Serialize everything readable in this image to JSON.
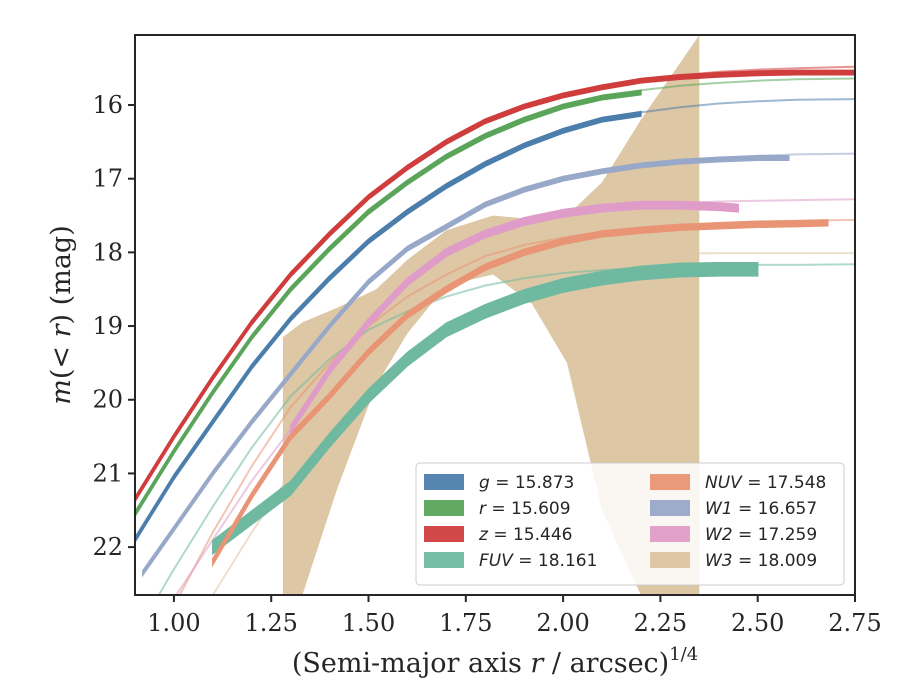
{
  "chart_data": {
    "type": "line",
    "xlabel": "(Semi-major axis r / arcsec)",
    "xlabel_parts": {
      "pre": "(Semi-major axis ",
      "var": "r",
      "post": " / arcsec)",
      "sup": "1/4"
    },
    "ylabel": "m(< r) (mag)",
    "ylabel_parts": {
      "pre": "m(",
      "mid": "< r",
      "post": ") (mag)"
    },
    "xlim": [
      0.9,
      2.75
    ],
    "ylim": [
      22.65,
      15.05
    ],
    "y_inverted": true,
    "xticks": [
      1.0,
      1.25,
      1.5,
      1.75,
      2.0,
      2.25,
      2.5,
      2.75
    ],
    "xtick_labels": [
      "1.00",
      "1.25",
      "1.50",
      "1.75",
      "2.00",
      "2.25",
      "2.50",
      "2.75"
    ],
    "yticks": [
      16,
      17,
      18,
      19,
      20,
      21,
      22
    ],
    "ytick_labels": [
      "16",
      "17",
      "18",
      "19",
      "20",
      "21",
      "22"
    ],
    "grid": false,
    "legend_position": "lower-right",
    "series": [
      {
        "name": "g",
        "label_var": "g",
        "label_value": "= 15.873",
        "color": "#4c7eac",
        "x": [
          0.9,
          1.0,
          1.1,
          1.2,
          1.3,
          1.4,
          1.5,
          1.6,
          1.7,
          1.8,
          1.9,
          2.0,
          2.1,
          2.2,
          2.3,
          2.4,
          2.5,
          2.6,
          2.75
        ],
        "y": [
          21.9,
          21.05,
          20.3,
          19.55,
          18.9,
          18.35,
          17.85,
          17.45,
          17.1,
          16.8,
          16.55,
          16.35,
          16.2,
          16.12,
          16.07,
          16.04,
          16.02,
          16.01,
          16.0
        ],
        "model_y": [
          21.9,
          21.05,
          20.3,
          19.55,
          18.9,
          18.35,
          17.85,
          17.45,
          17.1,
          16.8,
          16.55,
          16.35,
          16.2,
          16.1,
          16.03,
          15.98,
          15.95,
          15.93,
          15.92
        ],
        "x_end": 2.2,
        "band": 0.03
      },
      {
        "name": "r",
        "label_var": "r",
        "label_value": "= 15.609",
        "color": "#5aa55a",
        "x": [
          0.9,
          1.0,
          1.1,
          1.2,
          1.3,
          1.4,
          1.5,
          1.6,
          1.7,
          1.8,
          1.9,
          2.0,
          2.1,
          2.2,
          2.3,
          2.4,
          2.5,
          2.6,
          2.75
        ],
        "y": [
          21.55,
          20.7,
          19.9,
          19.15,
          18.5,
          17.95,
          17.45,
          17.05,
          16.7,
          16.42,
          16.2,
          16.02,
          15.9,
          15.83,
          15.78,
          15.75,
          15.73,
          15.72,
          15.71
        ],
        "model_y": [
          21.55,
          20.7,
          19.9,
          19.15,
          18.5,
          17.95,
          17.45,
          17.05,
          16.7,
          16.42,
          16.2,
          16.02,
          15.9,
          15.8,
          15.74,
          15.7,
          15.67,
          15.65,
          15.64
        ],
        "x_end": 2.23,
        "band": 0.03
      },
      {
        "name": "z",
        "label_var": "z",
        "label_value": "= 15.446",
        "color": "#d03d3d",
        "x": [
          0.9,
          1.0,
          1.1,
          1.2,
          1.3,
          1.4,
          1.5,
          1.6,
          1.7,
          1.8,
          1.9,
          2.0,
          2.1,
          2.2,
          2.3,
          2.4,
          2.5,
          2.6,
          2.75
        ],
        "y": [
          21.35,
          20.5,
          19.7,
          18.95,
          18.3,
          17.75,
          17.25,
          16.85,
          16.5,
          16.22,
          16.02,
          15.87,
          15.76,
          15.67,
          15.62,
          15.59,
          15.57,
          15.56,
          15.56
        ],
        "model_y": [
          21.35,
          20.5,
          19.7,
          18.95,
          18.3,
          17.75,
          17.25,
          16.85,
          16.5,
          16.22,
          16.02,
          15.87,
          15.76,
          15.66,
          15.6,
          15.55,
          15.52,
          15.5,
          15.48
        ],
        "x_end": 2.75,
        "band": 0.03
      },
      {
        "name": "FUV",
        "label_var": "FUV",
        "label_value": "= 18.161",
        "color": "#6fb9a0",
        "x": [
          1.1,
          1.2,
          1.3,
          1.4,
          1.5,
          1.6,
          1.7,
          1.8,
          1.9,
          2.0,
          2.1,
          2.2,
          2.3,
          2.4,
          2.5
        ],
        "y": [
          22.0,
          21.6,
          21.2,
          20.55,
          19.95,
          19.45,
          19.05,
          18.8,
          18.6,
          18.45,
          18.35,
          18.28,
          18.24,
          18.23,
          18.23
        ],
        "model_y": [
          23.2,
          22.3,
          21.45,
          20.65,
          19.95,
          19.45,
          19.05,
          18.8,
          18.6,
          18.45,
          18.35,
          18.28,
          18.24,
          18.21,
          18.19,
          18.18,
          18.17,
          18.17,
          18.16
        ],
        "model_x": [
          0.9,
          1.0,
          1.1,
          1.2,
          1.3,
          1.4,
          1.5,
          1.6,
          1.7,
          1.8,
          1.9,
          2.0,
          2.1,
          2.2,
          2.3,
          2.4,
          2.5,
          2.6,
          2.75
        ],
        "x_end": 2.5,
        "band": 0.09
      },
      {
        "name": "NUV",
        "label_var": "NUV",
        "label_value": "= 17.548",
        "color": "#e99474",
        "x": [
          1.1,
          1.2,
          1.3,
          1.4,
          1.5,
          1.6,
          1.7,
          1.8,
          1.9,
          2.0,
          2.1,
          2.2,
          2.3,
          2.4,
          2.5,
          2.6,
          2.68
        ],
        "y": [
          22.2,
          21.3,
          20.5,
          19.95,
          19.35,
          18.85,
          18.5,
          18.2,
          18.0,
          17.85,
          17.75,
          17.7,
          17.66,
          17.64,
          17.62,
          17.61,
          17.6
        ],
        "model_y": [
          23.8,
          22.8,
          21.8,
          20.9,
          20.1,
          19.5,
          19.0,
          18.6,
          18.3,
          18.05,
          17.9,
          17.8,
          17.72,
          17.67,
          17.63,
          17.6,
          17.58,
          17.57,
          17.56
        ],
        "model_x": [
          0.9,
          1.0,
          1.1,
          1.2,
          1.3,
          1.4,
          1.5,
          1.6,
          1.7,
          1.8,
          1.9,
          2.0,
          2.1,
          2.2,
          2.3,
          2.4,
          2.5,
          2.6,
          2.75
        ],
        "x_end": 2.68,
        "band": 0.04
      },
      {
        "name": "W1",
        "label_var": "W1",
        "label_value": "= 16.657",
        "color": "#98a8c8",
        "x": [
          0.92,
          1.0,
          1.1,
          1.2,
          1.3,
          1.4,
          1.5,
          1.6,
          1.7,
          1.8,
          1.9,
          2.0,
          2.1,
          2.2,
          2.3,
          2.4,
          2.5,
          2.58
        ],
        "y": [
          22.35,
          21.75,
          21.0,
          20.3,
          19.65,
          19.0,
          18.4,
          17.95,
          17.65,
          17.35,
          17.15,
          17.0,
          16.9,
          16.82,
          16.77,
          16.74,
          16.72,
          16.72
        ],
        "model_y": [
          22.35,
          21.75,
          21.0,
          20.3,
          19.65,
          19.0,
          18.4,
          17.95,
          17.65,
          17.35,
          17.15,
          17.0,
          16.9,
          16.82,
          16.76,
          16.72,
          16.69,
          16.67,
          16.66
        ],
        "model_x": [
          0.92,
          1.0,
          1.1,
          1.2,
          1.3,
          1.4,
          1.5,
          1.6,
          1.7,
          1.8,
          1.9,
          2.0,
          2.1,
          2.2,
          2.3,
          2.4,
          2.5,
          2.6,
          2.75
        ],
        "x_end": 2.58,
        "band": 0.03
      },
      {
        "name": "W2",
        "label_var": "W2",
        "label_value": "= 17.259",
        "color": "#df9cc8",
        "x": [
          1.3,
          1.4,
          1.5,
          1.6,
          1.7,
          1.8,
          1.9,
          2.0,
          2.1,
          2.2,
          2.3,
          2.4,
          2.45
        ],
        "y": [
          20.4,
          19.6,
          18.95,
          18.4,
          18.0,
          17.75,
          17.58,
          17.47,
          17.4,
          17.36,
          17.36,
          17.38,
          17.4
        ],
        "model_y": [
          23.5,
          22.7,
          21.9,
          21.1,
          20.4,
          19.6,
          18.95,
          18.4,
          18.0,
          17.75,
          17.58,
          17.47,
          17.4,
          17.36,
          17.33,
          17.31,
          17.3,
          17.29,
          17.28
        ],
        "model_x": [
          0.9,
          1.0,
          1.1,
          1.2,
          1.3,
          1.4,
          1.5,
          1.6,
          1.7,
          1.8,
          1.9,
          2.0,
          2.1,
          2.2,
          2.3,
          2.4,
          2.5,
          2.6,
          2.75
        ],
        "x_end": 2.45,
        "band": 0.05
      },
      {
        "name": "W3",
        "label_var": "W3",
        "label_value": "= 18.009",
        "color": "#dcc4a0",
        "band_x": [
          1.28,
          1.33,
          1.42,
          1.52,
          1.6,
          1.7,
          1.82,
          1.92,
          2.01,
          2.1,
          2.2,
          2.35
        ],
        "band_upper": [
          19.15,
          18.95,
          18.75,
          18.5,
          18.1,
          17.7,
          17.5,
          17.55,
          17.5,
          17.05,
          16.2,
          15.05
        ],
        "band_lower": [
          22.65,
          22.65,
          21.2,
          19.8,
          19.1,
          18.45,
          18.3,
          18.7,
          19.5,
          21.5,
          22.65,
          22.65
        ],
        "model_x": [
          1.0,
          1.2,
          1.4,
          1.6,
          1.8,
          2.0,
          2.2,
          2.4,
          2.6,
          2.75
        ],
        "model_y": [
          23.5,
          21.8,
          20.2,
          18.9,
          18.2,
          18.05,
          18.02,
          18.01,
          18.01,
          18.01
        ]
      }
    ]
  }
}
